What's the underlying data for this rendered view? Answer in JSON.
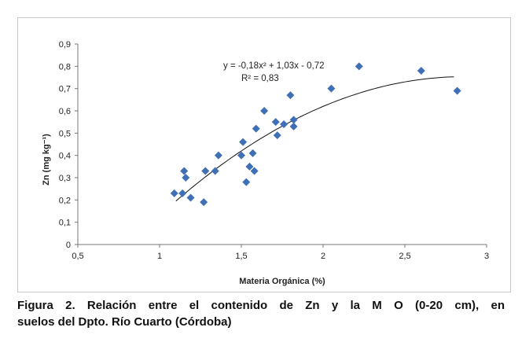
{
  "caption": {
    "line1": "Figura 2.  Relación entre el contenido de Zn y la M O (0-20 cm), en",
    "line2": "suelos del Dpto. Río Cuarto (Córdoba)"
  },
  "chart_data": {
    "type": "scatter",
    "title": "",
    "xlabel": "Materia Orgánica (%)",
    "ylabel": "Zn (mg kg⁻¹)",
    "xlim": [
      0.5,
      3
    ],
    "ylim": [
      0,
      0.9
    ],
    "x_ticks": [
      "0,5",
      "1",
      "1,5",
      "2",
      "2,5",
      "3"
    ],
    "y_ticks": [
      "0",
      "0,1",
      "0,2",
      "0,3",
      "0,4",
      "0,5",
      "0,6",
      "0,7",
      "0,8",
      "0,9"
    ],
    "grid": false,
    "marker_color": "#3f6fb5",
    "trendline": {
      "type": "polynomial",
      "coefficients": [
        -0.18,
        1.03,
        -0.72
      ],
      "x_range": [
        1.1,
        2.8
      ],
      "equation": "y = -0,18x² + 1,03x - 0,72",
      "r_squared": "R² = 0,83"
    },
    "points": [
      {
        "x": 1.09,
        "y": 0.23
      },
      {
        "x": 1.14,
        "y": 0.23
      },
      {
        "x": 1.15,
        "y": 0.33
      },
      {
        "x": 1.16,
        "y": 0.3
      },
      {
        "x": 1.19,
        "y": 0.21
      },
      {
        "x": 1.27,
        "y": 0.19
      },
      {
        "x": 1.28,
        "y": 0.33
      },
      {
        "x": 1.34,
        "y": 0.33
      },
      {
        "x": 1.36,
        "y": 0.4
      },
      {
        "x": 1.5,
        "y": 0.4
      },
      {
        "x": 1.51,
        "y": 0.46
      },
      {
        "x": 1.53,
        "y": 0.28
      },
      {
        "x": 1.55,
        "y": 0.35
      },
      {
        "x": 1.57,
        "y": 0.41
      },
      {
        "x": 1.58,
        "y": 0.33
      },
      {
        "x": 1.59,
        "y": 0.52
      },
      {
        "x": 1.64,
        "y": 0.6
      },
      {
        "x": 1.71,
        "y": 0.55
      },
      {
        "x": 1.72,
        "y": 0.49
      },
      {
        "x": 1.76,
        "y": 0.54
      },
      {
        "x": 1.8,
        "y": 0.67
      },
      {
        "x": 1.82,
        "y": 0.56
      },
      {
        "x": 1.82,
        "y": 0.53
      },
      {
        "x": 2.05,
        "y": 0.7
      },
      {
        "x": 2.22,
        "y": 0.8
      },
      {
        "x": 2.6,
        "y": 0.78
      },
      {
        "x": 2.82,
        "y": 0.69
      }
    ]
  }
}
